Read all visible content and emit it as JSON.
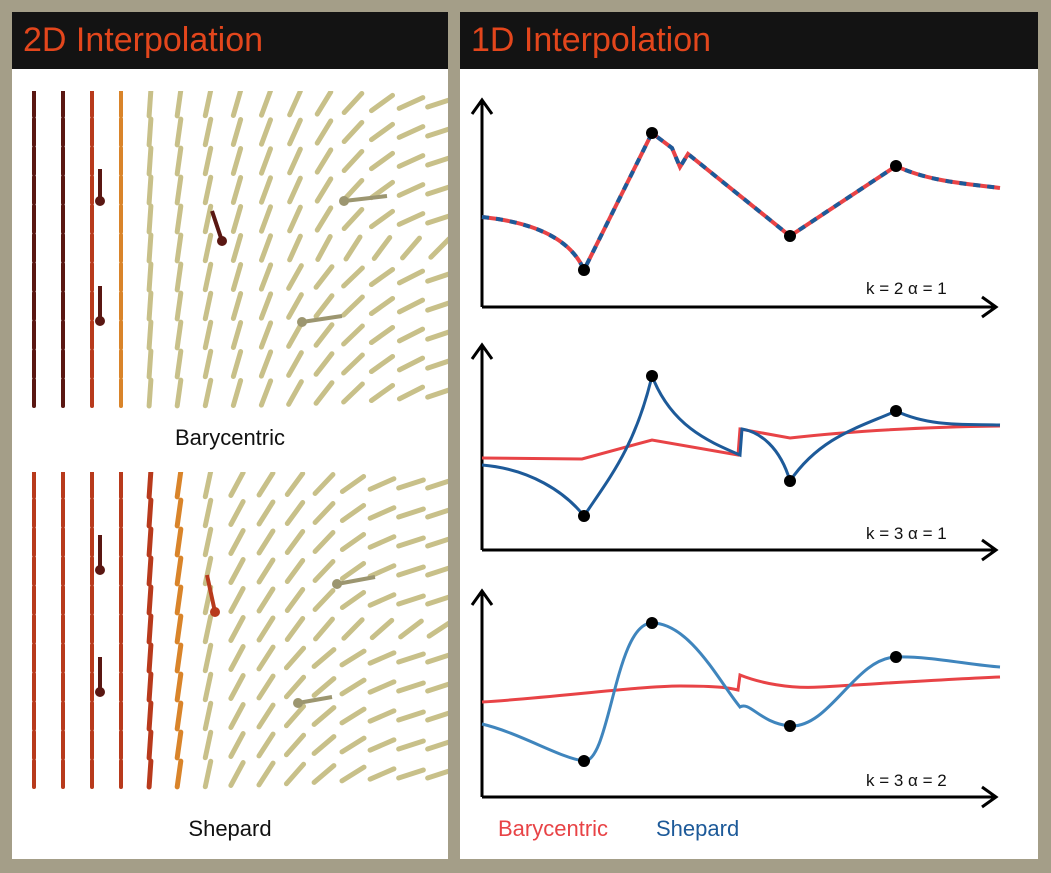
{
  "panels": {
    "left": {
      "title": "2D Interpolation",
      "fields": [
        {
          "caption": "Barycentric"
        },
        {
          "caption": "Shepard"
        }
      ]
    },
    "right": {
      "title": "1D Interpolation",
      "plots": [
        {
          "label": "k = 2   α = 1",
          "type": "line"
        },
        {
          "label": "k = 3   α = 1",
          "type": "line"
        },
        {
          "label": "k = 3   α = 2",
          "type": "line"
        }
      ],
      "legend": [
        {
          "name": "Barycentric",
          "color": "#e84346"
        },
        {
          "name": "Shepard",
          "color": "#1d5a99"
        }
      ]
    }
  },
  "colors": {
    "background": "#a49e88",
    "header": "#131313",
    "title": "#e3461c",
    "barycentric": "#e84346",
    "shepard_dark": "#1d5a99",
    "shepard_light": "#3f85bd",
    "needle_dark": "#5a1712",
    "needle_red": "#b83a1c",
    "needle_orange": "#d9842a",
    "needle_khaki": "#c8c089"
  },
  "icons": [
    "arrow-axis-icon"
  ]
}
